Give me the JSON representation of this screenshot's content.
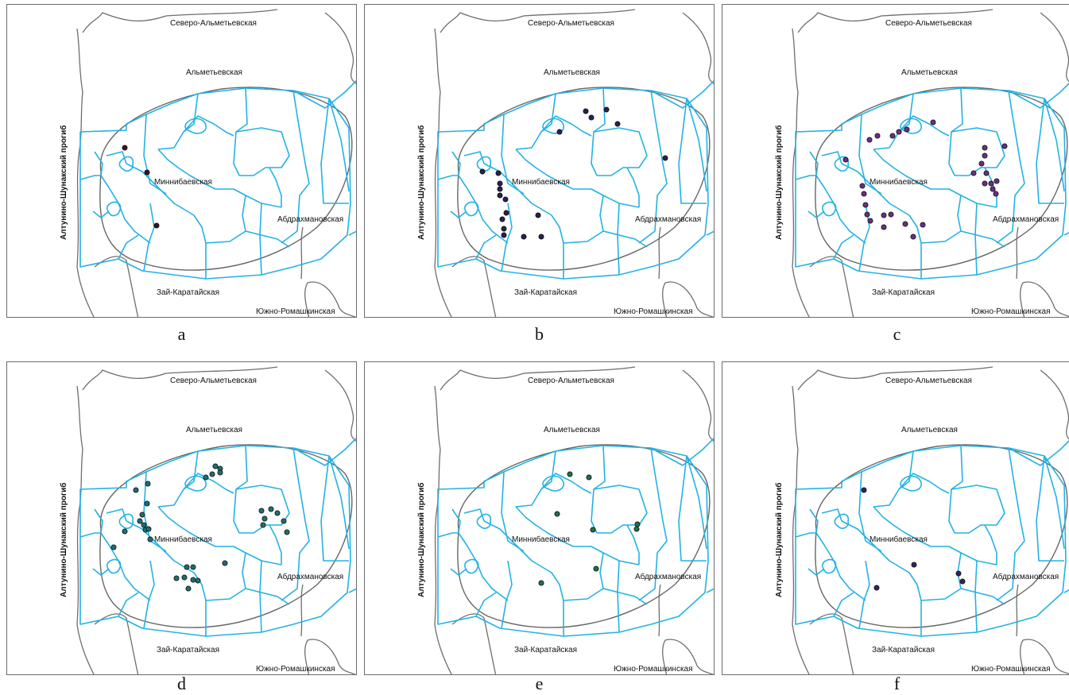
{
  "labels": {
    "north": "Северо-Альметьевская",
    "almet": "Альметьевская",
    "minnib": "Миннибаевская",
    "abdr": "Абдрахмановская",
    "zai": "Зай-Каратайская",
    "south": "Южно-Ромашкинская",
    "trough": "Алтунино-Шунакский прогиб"
  },
  "colors": {
    "block_lines": "#23b2e4",
    "boundary_lines": "#6e6e6e",
    "panel_a_dots": "#3a1420",
    "panel_b_dots": "#2a1f52",
    "panel_c_dots": "#6a2f80",
    "panel_d_dots": "#1f6e70",
    "panel_e_dots": "#1f7048",
    "panel_f_dots": "#3a1f6a"
  },
  "panels": [
    {
      "id": "a",
      "caption": "a",
      "dot_color": "#3a1420",
      "well_count": 3
    },
    {
      "id": "b",
      "caption": "b",
      "dot_color": "#2a1f52",
      "well_count": 19
    },
    {
      "id": "c",
      "caption": "c",
      "dot_color": "#6a2f80",
      "well_count": 29
    },
    {
      "id": "d",
      "caption": "d",
      "dot_color": "#1f6e70",
      "well_count": 31
    },
    {
      "id": "e",
      "caption": "e",
      "dot_color": "#1f7048",
      "well_count": 8
    },
    {
      "id": "f",
      "caption": "f",
      "dot_color": "#3a1f6a",
      "well_count": 5
    }
  ]
}
